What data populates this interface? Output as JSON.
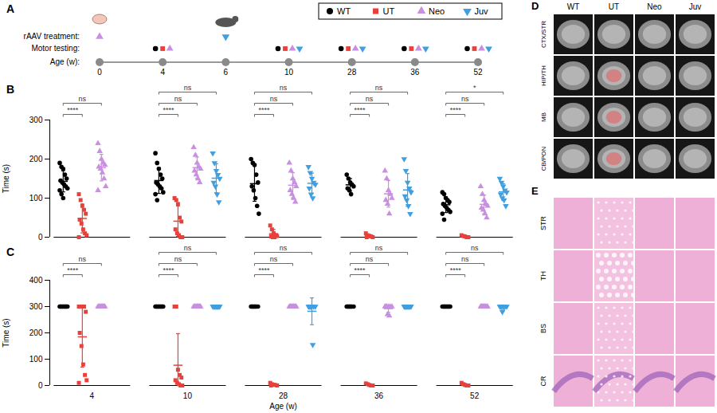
{
  "panel_a": {
    "panel_label": "A",
    "row_labels": {
      "treatment": "rAAV treatment:",
      "testing": "Motor testing:",
      "age": "Age (w):"
    },
    "ages": [
      0,
      4,
      6,
      10,
      28,
      36,
      52
    ],
    "treatment": [
      {
        "age": 0,
        "group": "Neo"
      },
      {
        "age": 6,
        "group": "Juv"
      }
    ],
    "motor_testing": [
      {
        "age": 4,
        "groups": [
          "WT",
          "UT",
          "Neo"
        ]
      },
      {
        "age": 10,
        "groups": [
          "WT",
          "UT",
          "Neo",
          "Juv"
        ]
      },
      {
        "age": 28,
        "groups": [
          "WT",
          "UT",
          "Neo",
          "Juv"
        ]
      },
      {
        "age": 36,
        "groups": [
          "WT",
          "UT",
          "Neo",
          "Juv"
        ]
      },
      {
        "age": 52,
        "groups": [
          "WT",
          "UT",
          "Neo",
          "Juv"
        ]
      }
    ]
  },
  "chart_data": [
    {
      "panel_label": "B",
      "type": "scatter",
      "ylabel": "Time (s)",
      "categories": [
        "4",
        "10",
        "28",
        "36",
        "52"
      ],
      "ylim": [
        0,
        300
      ],
      "yticks": [
        0,
        100,
        200,
        300
      ],
      "tick_labels": "y",
      "series": [
        {
          "name": "WT",
          "color": "#000000",
          "marker": "circle",
          "values": [
            [
              190,
              180,
              175,
              160,
              150,
              145,
              140,
              135,
              130,
              125,
              120,
              110,
              100
            ],
            [
              215,
              190,
              175,
              160,
              150,
              140,
              135,
              130,
              125,
              115,
              110,
              95
            ],
            [
              200,
              190,
              185,
              160,
              140,
              130,
              120,
              100,
              80,
              60
            ],
            [
              160,
              150,
              140,
              135,
              130,
              125,
              120,
              110
            ],
            [
              115,
              110,
              100,
              95,
              90,
              85,
              80,
              75,
              70,
              65,
              60,
              45
            ]
          ],
          "mean": [
            143,
            145,
            137,
            134,
            83
          ],
          "sd": [
            27,
            33,
            45,
            16,
            20
          ]
        },
        {
          "name": "UT",
          "color": "#e8413c",
          "marker": "square",
          "values": [
            [
              110,
              95,
              80,
              70,
              60,
              45,
              35,
              20,
              10,
              5,
              0
            ],
            [
              100,
              95,
              85,
              50,
              40,
              20,
              10,
              5,
              0,
              0
            ],
            [
              30,
              20,
              10,
              5,
              3,
              2,
              0,
              0
            ],
            [
              10,
              5,
              3,
              2,
              0,
              0
            ],
            [
              5,
              3,
              2,
              0,
              0
            ]
          ],
          "mean": [
            48,
            41,
            9,
            3,
            2
          ],
          "sd": [
            37,
            39,
            11,
            4,
            2
          ]
        },
        {
          "name": "Neo",
          "color": "#c98fe0",
          "marker": "triangle",
          "values": [
            [
              240,
              220,
              200,
              190,
              185,
              180,
              175,
              165,
              150,
              130,
              120
            ],
            [
              230,
              210,
              190,
              180,
              175,
              170,
              160,
              150,
              140
            ],
            [
              190,
              170,
              150,
              140,
              130,
              120,
              110,
              100,
              90
            ],
            [
              170,
              150,
              120,
              110,
              100,
              95,
              85,
              60
            ],
            [
              130,
              110,
              95,
              85,
              80,
              75,
              70,
              60,
              50
            ]
          ],
          "mean": [
            178,
            178,
            133,
            111,
            84
          ],
          "sd": [
            34,
            27,
            32,
            34,
            24
          ]
        },
        {
          "name": "Juv",
          "color": "#3f9fe0",
          "marker": "triangle-down",
          "values": [
            null,
            [
              215,
              190,
              170,
              160,
              150,
              140,
              130,
              110,
              90
            ],
            [
              180,
              165,
              150,
              140,
              135,
              125,
              110,
              100
            ],
            [
              200,
              170,
              140,
              125,
              115,
              105,
              95,
              80,
              60
            ],
            [
              150,
              140,
              130,
              120,
              115,
              110,
              100,
              95,
              80
            ]
          ],
          "mean": [
            null,
            151,
            138,
            121,
            116
          ],
          "sd": [
            null,
            37,
            26,
            42,
            21
          ]
        }
      ],
      "annotations": [
        {
          "category": "4",
          "pair": [
            "WT",
            "UT"
          ],
          "label": "****"
        },
        {
          "category": "4",
          "pair": [
            "WT",
            "Neo"
          ],
          "label": "ns"
        },
        {
          "category": "10",
          "pair": [
            "WT",
            "UT"
          ],
          "label": "****"
        },
        {
          "category": "10",
          "pair": [
            "WT",
            "Neo"
          ],
          "label": "ns"
        },
        {
          "category": "10",
          "pair": [
            "WT",
            "Juv"
          ],
          "label": "ns"
        },
        {
          "category": "28",
          "pair": [
            "WT",
            "UT"
          ],
          "label": "****"
        },
        {
          "category": "28",
          "pair": [
            "WT",
            "Neo"
          ],
          "label": "ns"
        },
        {
          "category": "28",
          "pair": [
            "WT",
            "Juv"
          ],
          "label": "ns"
        },
        {
          "category": "36",
          "pair": [
            "WT",
            "UT"
          ],
          "label": "****"
        },
        {
          "category": "36",
          "pair": [
            "WT",
            "Neo"
          ],
          "label": "ns"
        },
        {
          "category": "36",
          "pair": [
            "WT",
            "Juv"
          ],
          "label": "ns"
        },
        {
          "category": "52",
          "pair": [
            "WT",
            "UT"
          ],
          "label": "****"
        },
        {
          "category": "52",
          "pair": [
            "WT",
            "Neo"
          ],
          "label": "ns"
        },
        {
          "category": "52",
          "pair": [
            "WT",
            "Juv"
          ],
          "label": "*"
        }
      ]
    },
    {
      "panel_label": "C",
      "type": "scatter",
      "ylabel": "Time (s)",
      "xlabel": "Age (w)",
      "categories": [
        "4",
        "10",
        "28",
        "36",
        "52"
      ],
      "ylim": [
        0,
        400
      ],
      "yticks": [
        0,
        100,
        200,
        300,
        400
      ],
      "series": [
        {
          "name": "WT",
          "color": "#000000",
          "marker": "circle",
          "values": [
            [
              300,
              300,
              300,
              300,
              300,
              300,
              300,
              300,
              300,
              300
            ],
            [
              300,
              300,
              300,
              300,
              300,
              300,
              300,
              300,
              300,
              300
            ],
            [
              300,
              300,
              300,
              300,
              300,
              300,
              300,
              300
            ],
            [
              300,
              300,
              300,
              300,
              300,
              300,
              300,
              300
            ],
            [
              300,
              300,
              300,
              300,
              300,
              300,
              300,
              300,
              300,
              300
            ]
          ],
          "mean": [
            300,
            300,
            300,
            300,
            300
          ],
          "sd": [
            0,
            0,
            0,
            0,
            0
          ]
        },
        {
          "name": "UT",
          "color": "#e8413c",
          "marker": "square",
          "values": [
            [
              300,
              300,
              300,
              300,
              280,
              200,
              150,
              80,
              40,
              20,
              10
            ],
            [
              300,
              300,
              60,
              40,
              30,
              20,
              10,
              5,
              0,
              0
            ],
            [
              10,
              5,
              3,
              2,
              0,
              0
            ],
            [
              8,
              5,
              2,
              0,
              0
            ],
            [
              10,
              5,
              2,
              0,
              0
            ]
          ],
          "mean": [
            185,
            77,
            3,
            3,
            3
          ],
          "sd": [
            115,
            120,
            4,
            3,
            4
          ]
        },
        {
          "name": "Neo",
          "color": "#c98fe0",
          "marker": "triangle",
          "values": [
            [
              300,
              300,
              300,
              300,
              300,
              300,
              300,
              300,
              300
            ],
            [
              300,
              300,
              300,
              300,
              300,
              300,
              300,
              300,
              300
            ],
            [
              300,
              300,
              300,
              300,
              300,
              300,
              300,
              300,
              300
            ],
            [
              300,
              300,
              300,
              300,
              300,
              300,
              270,
              265
            ],
            [
              300,
              300,
              300,
              300,
              300,
              300,
              300,
              300,
              300
            ]
          ],
          "mean": [
            300,
            300,
            300,
            292,
            300
          ],
          "sd": [
            0,
            0,
            0,
            14,
            0
          ]
        },
        {
          "name": "Juv",
          "color": "#3f9fe0",
          "marker": "triangle-down",
          "values": [
            null,
            [
              300,
              300,
              300,
              300,
              300,
              300,
              300,
              300,
              300
            ],
            [
              300,
              300,
              300,
              300,
              300,
              300,
              300,
              155
            ],
            [
              300,
              300,
              300,
              300,
              300,
              300,
              300,
              300,
              300
            ],
            [
              300,
              300,
              300,
              300,
              300,
              300,
              280
            ]
          ],
          "mean": [
            null,
            300,
            282,
            300,
            297
          ],
          "sd": [
            null,
            0,
            51,
            0,
            8
          ]
        }
      ],
      "annotations": [
        {
          "category": "4",
          "pair": [
            "WT",
            "UT"
          ],
          "label": "****"
        },
        {
          "category": "4",
          "pair": [
            "WT",
            "Neo"
          ],
          "label": "ns"
        },
        {
          "category": "10",
          "pair": [
            "WT",
            "UT"
          ],
          "label": "****"
        },
        {
          "category": "10",
          "pair": [
            "WT",
            "Neo"
          ],
          "label": "ns"
        },
        {
          "category": "10",
          "pair": [
            "WT",
            "Juv"
          ],
          "label": "ns"
        },
        {
          "category": "28",
          "pair": [
            "WT",
            "UT"
          ],
          "label": "****"
        },
        {
          "category": "28",
          "pair": [
            "WT",
            "Neo"
          ],
          "label": "ns"
        },
        {
          "category": "28",
          "pair": [
            "WT",
            "Juv"
          ],
          "label": "ns"
        },
        {
          "category": "36",
          "pair": [
            "WT",
            "UT"
          ],
          "label": "****"
        },
        {
          "category": "36",
          "pair": [
            "WT",
            "Neo"
          ],
          "label": "ns"
        },
        {
          "category": "36",
          "pair": [
            "WT",
            "Juv"
          ],
          "label": "ns"
        },
        {
          "category": "52",
          "pair": [
            "WT",
            "UT"
          ],
          "label": "****"
        },
        {
          "category": "52",
          "pair": [
            "WT",
            "Neo"
          ],
          "label": "ns"
        },
        {
          "category": "52",
          "pair": [
            "WT",
            "Juv"
          ],
          "label": "ns"
        }
      ]
    }
  ],
  "panel_d": {
    "panel_label": "D",
    "columns": [
      "WT",
      "UT",
      "Neo",
      "Juv"
    ],
    "rows": [
      "CTX/STR",
      "HIP/TH",
      "MB",
      "CB/PON"
    ]
  },
  "panel_e": {
    "panel_label": "E",
    "rows": [
      "STR",
      "TH",
      "BS",
      "CR"
    ]
  }
}
